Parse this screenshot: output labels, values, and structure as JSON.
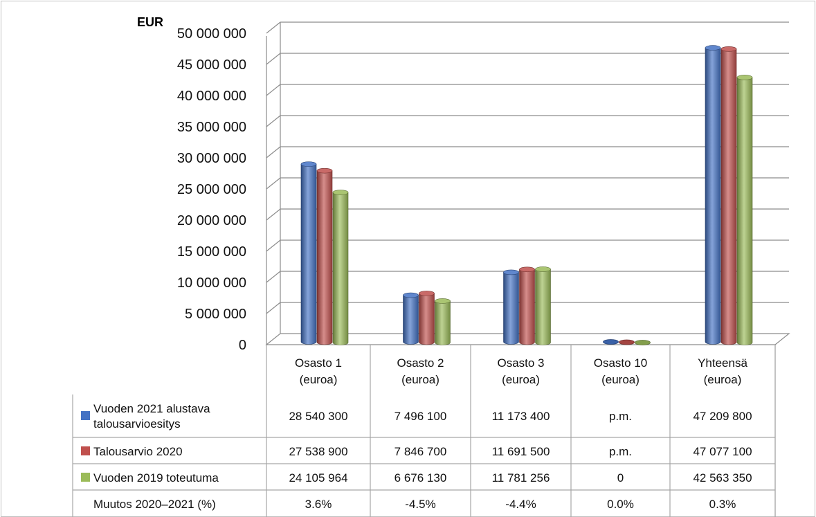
{
  "chart_data": {
    "type": "bar",
    "unit_label": "EUR",
    "y_ticks": [
      "50 000 000",
      "45 000 000",
      "40 000 000",
      "35 000 000",
      "30 000 000",
      "25 000 000",
      "20 000 000",
      "15 000 000",
      "10 000 000",
      "5 000 000",
      "0"
    ],
    "ylim": [
      0,
      50000000
    ],
    "grid": true,
    "categories": [
      [
        "Osasto 1",
        "(euroa)"
      ],
      [
        "Osasto 2",
        "(euroa)"
      ],
      [
        "Osasto 3",
        "(euroa)"
      ],
      [
        "Osasto 10",
        "(euroa)"
      ],
      [
        "Yhteensä",
        "(euroa)"
      ]
    ],
    "series": [
      {
        "name": [
          "Vuoden 2021 alustava",
          "talousarvioesitys"
        ],
        "color": "#4472C4",
        "values": [
          28540300,
          7496100,
          11173400,
          0,
          47209800
        ],
        "labels": [
          "28 540 300",
          "7 496 100",
          "11 173 400",
          "p.m.",
          "47 209 800"
        ]
      },
      {
        "name": [
          "Talousarvio 2020"
        ],
        "color": "#C0504D",
        "values": [
          27538900,
          7846700,
          11691500,
          0,
          47077100
        ],
        "labels": [
          "27 538 900",
          "7 846 700",
          "11 691 500",
          "p.m.",
          "47 077 100"
        ]
      },
      {
        "name": [
          "Vuoden 2019 toteutuma"
        ],
        "color": "#9BBB59",
        "values": [
          24105964,
          6676130,
          11781256,
          0,
          42563350
        ],
        "labels": [
          "24 105 964",
          "6 676 130",
          "11 781 256",
          "0",
          "42 563 350"
        ]
      }
    ],
    "change_row": {
      "label": "Muutos 2020–2021 (%)",
      "values": [
        "3.6%",
        "-4.5%",
        "-4.4%",
        "0.0%",
        "0.3%"
      ]
    }
  }
}
